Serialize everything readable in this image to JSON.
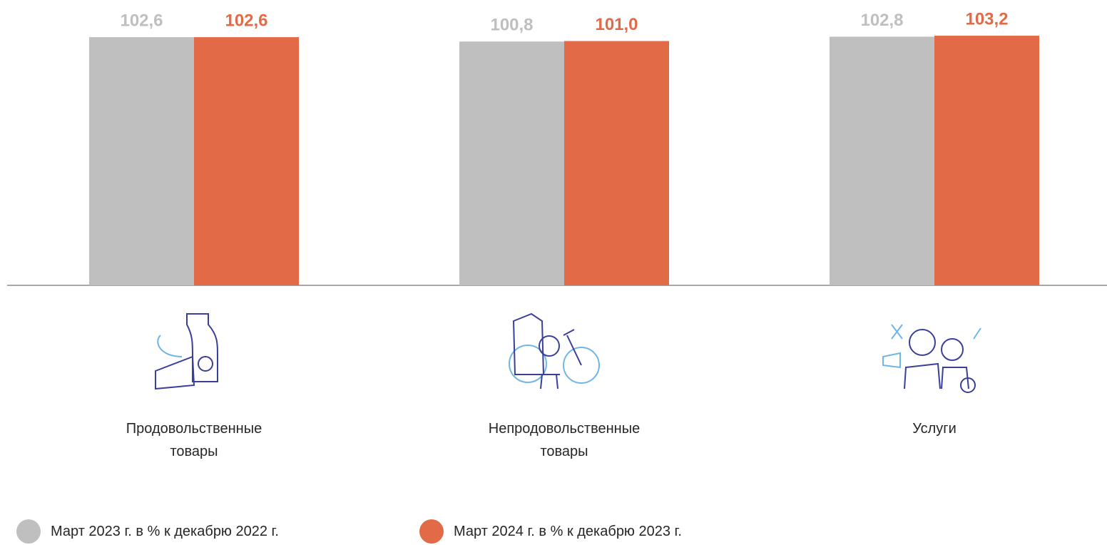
{
  "chart_data": {
    "type": "bar",
    "categories": [
      "Продовольственные товары",
      "Непродовольственные товары",
      "Услуги"
    ],
    "series": [
      {
        "name": "Март 2023 г. в % к декабрю 2022 г.",
        "color": "#bfbfbf",
        "values": [
          102.6,
          100.8,
          102.8
        ],
        "value_labels": [
          "102,6",
          "100,8",
          "102,8"
        ]
      },
      {
        "name": "Март 2024 г. в % к декабрю 2023 г.",
        "color": "#e36a46",
        "values": [
          102.6,
          101.0,
          103.2
        ],
        "value_labels": [
          "102,6",
          "101,0",
          "103,2"
        ]
      }
    ],
    "ylim": [
      0,
      110
    ]
  }
}
